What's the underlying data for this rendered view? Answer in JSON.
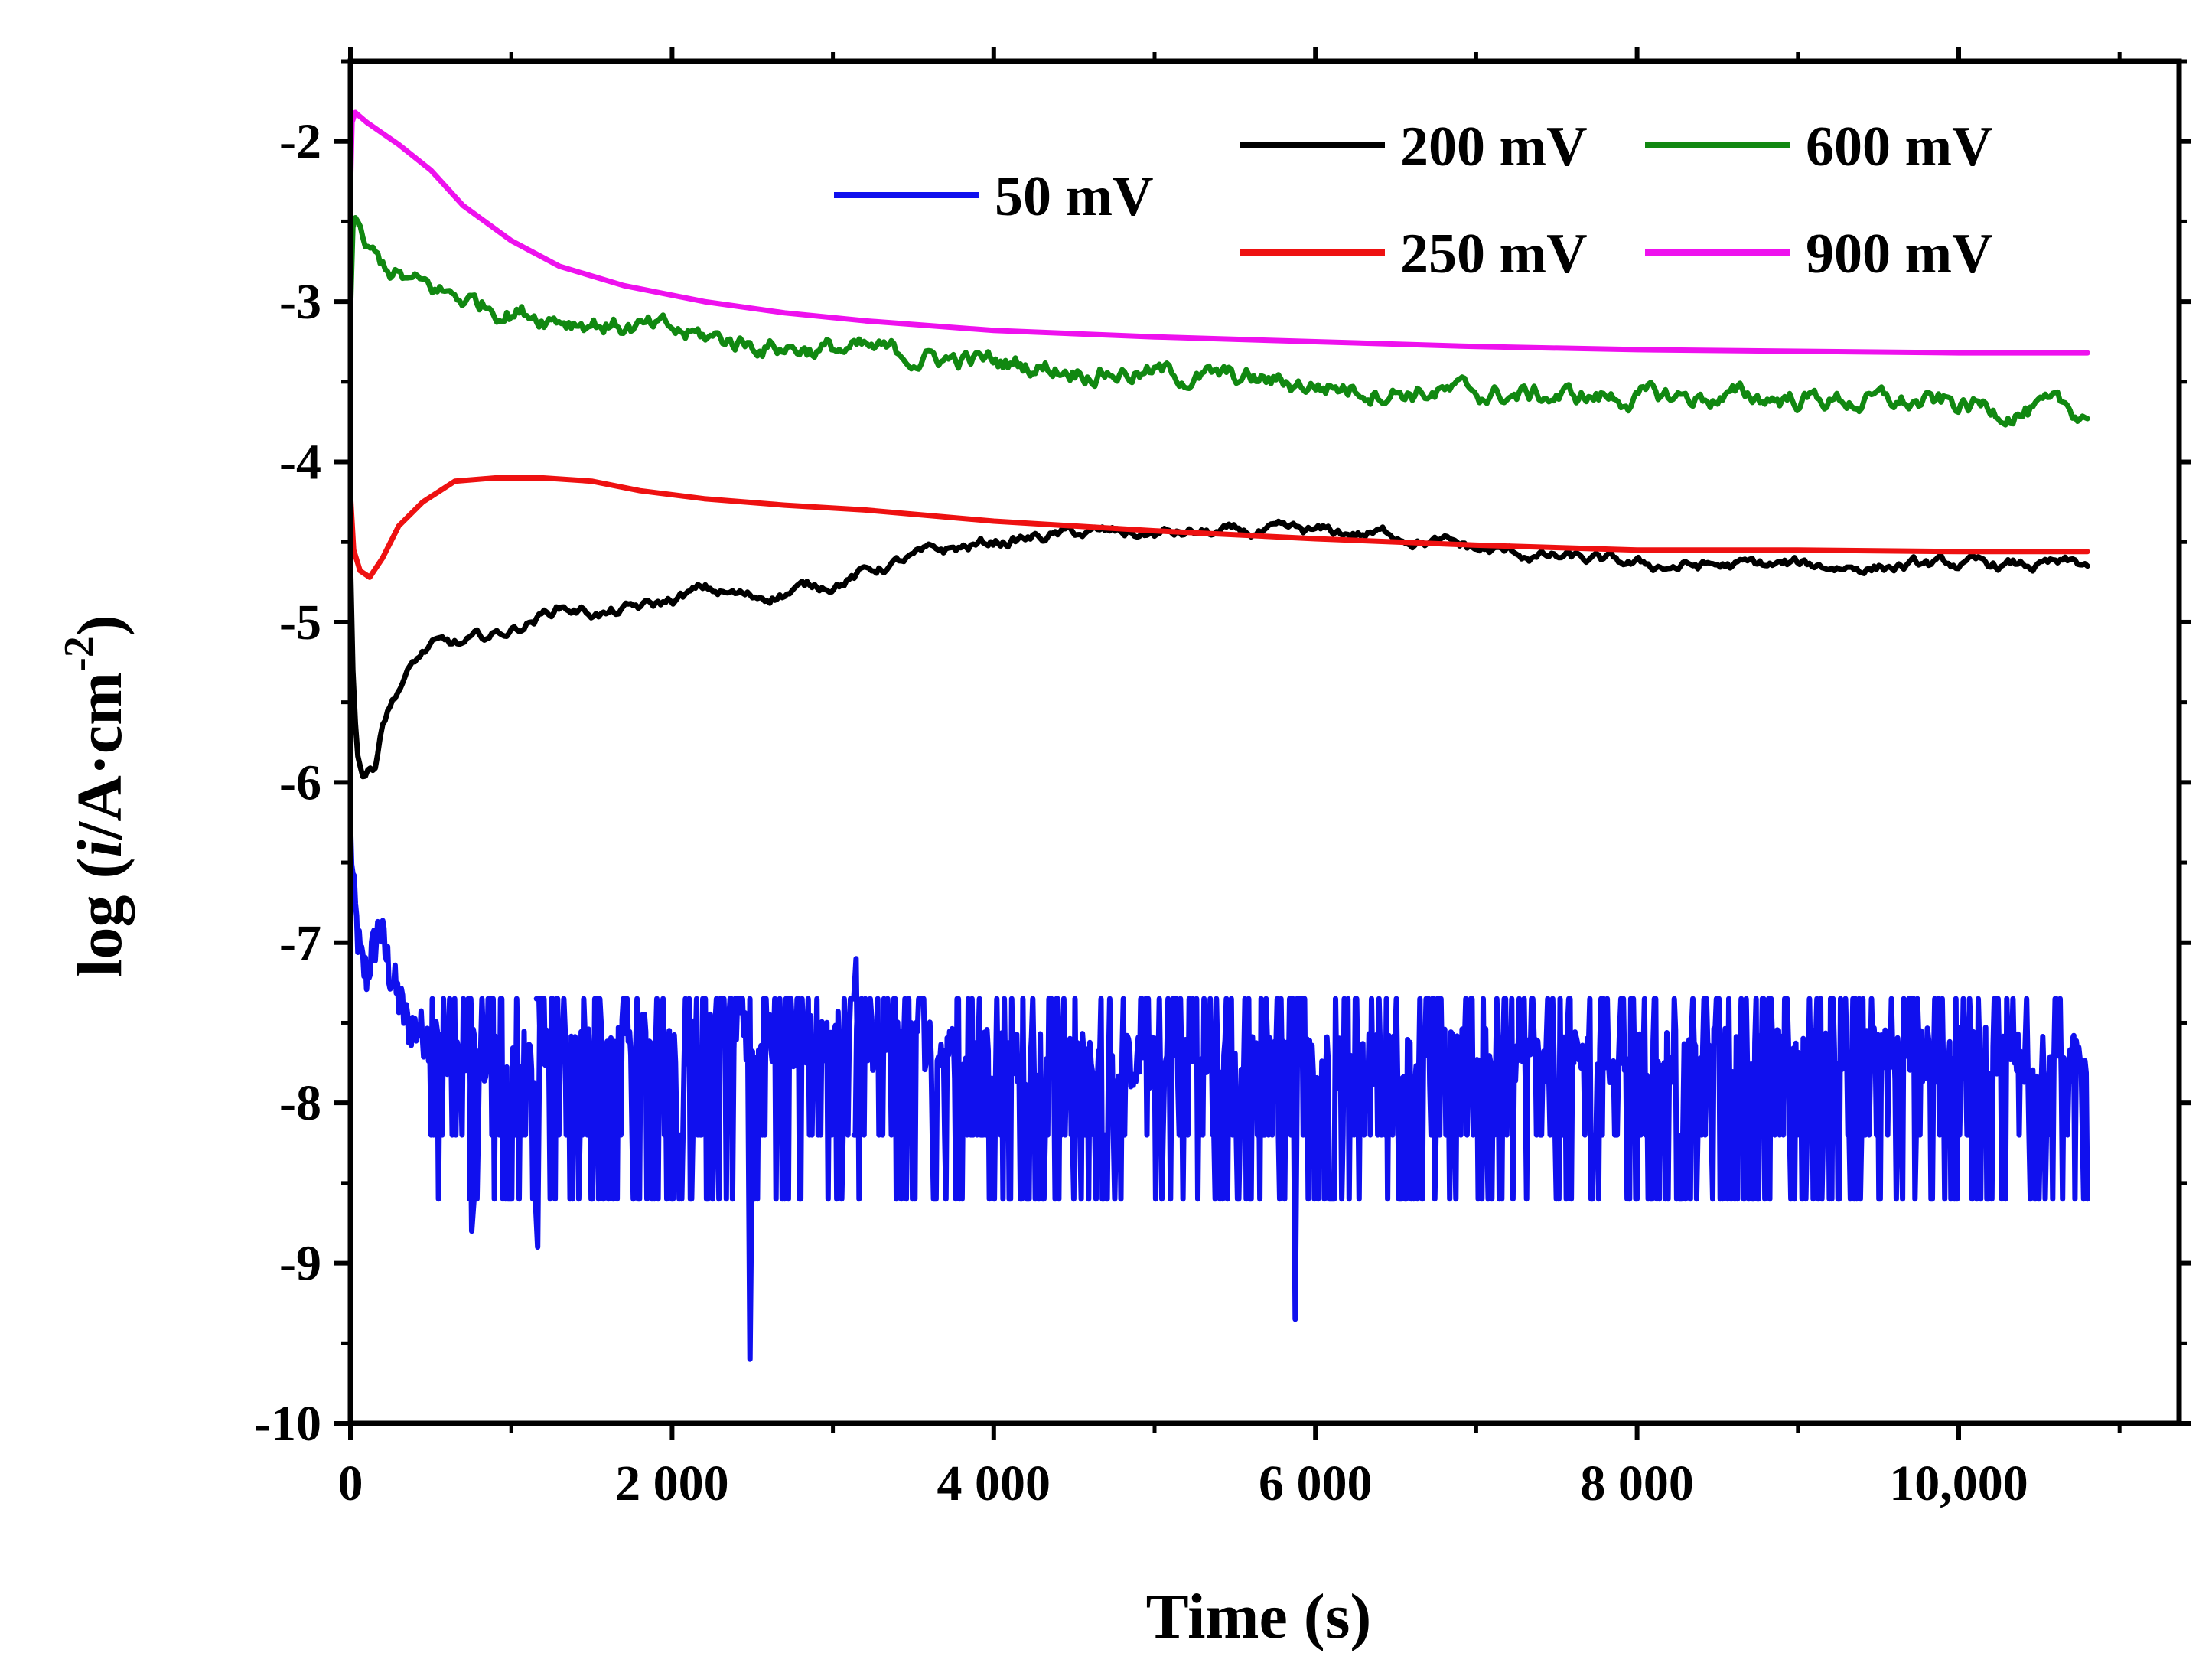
{
  "chart_data": {
    "type": "line",
    "xlabel": "Time (s)",
    "ylabel_parts": [
      "log (",
      "i",
      "/A·cm",
      "-2",
      ")"
    ],
    "xlim": [
      0,
      11000
    ],
    "ylim": [
      -10,
      -1.5
    ],
    "x_ticks": [
      {
        "value": 0,
        "label": "0"
      },
      {
        "value": 2000,
        "label": "2 000"
      },
      {
        "value": 4000,
        "label": "4 000"
      },
      {
        "value": 6000,
        "label": "6 000"
      },
      {
        "value": 8000,
        "label": "8 000"
      },
      {
        "value": 10000,
        "label": "10,000"
      }
    ],
    "y_ticks": [
      {
        "value": -2,
        "label": "-2"
      },
      {
        "value": -3,
        "label": "-3"
      },
      {
        "value": -4,
        "label": "-4"
      },
      {
        "value": -5,
        "label": "-5"
      },
      {
        "value": -6,
        "label": "-6"
      },
      {
        "value": -7,
        "label": "-7"
      },
      {
        "value": -8,
        "label": "-8"
      },
      {
        "value": -9,
        "label": "-9"
      },
      {
        "value": -10,
        "label": "-10"
      }
    ],
    "series": [
      {
        "name": "50 mV",
        "color": "#1010ee",
        "noise": "spiky",
        "x": [
          0,
          20,
          60,
          100,
          180,
          250,
          350,
          500,
          700,
          900,
          1200,
          1500,
          2000,
          2500,
          3000,
          4000,
          5000,
          6000,
          7000,
          8000,
          9000,
          10000,
          10800
        ],
        "y": [
          -6.3,
          -6.7,
          -7.1,
          -7.2,
          -6.9,
          -7.2,
          -7.5,
          -7.6,
          -7.7,
          -7.75,
          -7.7,
          -7.65,
          -7.6,
          -7.6,
          -7.6,
          -7.7,
          -7.75,
          -7.75,
          -7.7,
          -7.7,
          -7.7,
          -7.7,
          -7.7
        ]
      },
      {
        "name": "200 mV",
        "color": "#000000",
        "noise": "small",
        "x": [
          0,
          15,
          40,
          80,
          150,
          200,
          300,
          400,
          500,
          700,
          1000,
          1300,
          1600,
          1900,
          2200,
          2500,
          3000,
          3500,
          4000,
          4500,
          5000,
          5500,
          6000,
          6500,
          7000,
          7500,
          8000,
          9000,
          10000,
          10800
        ],
        "y": [
          -4.6,
          -5.3,
          -5.8,
          -5.95,
          -5.9,
          -5.6,
          -5.4,
          -5.25,
          -5.15,
          -5.15,
          -5.05,
          -4.9,
          -4.95,
          -4.9,
          -4.8,
          -4.85,
          -4.75,
          -4.6,
          -4.5,
          -4.45,
          -4.45,
          -4.45,
          -4.45,
          -4.45,
          -4.55,
          -4.6,
          -4.65,
          -4.65,
          -4.65,
          -4.65
        ]
      },
      {
        "name": "250 mV",
        "color": "#ee1111",
        "noise": "none",
        "x": [
          0,
          20,
          60,
          120,
          200,
          300,
          450,
          650,
          900,
          1200,
          1500,
          1800,
          2200,
          2700,
          3200,
          4000,
          5000,
          6000,
          7000,
          8000,
          9000,
          10000,
          10800
        ],
        "y": [
          -4.2,
          -4.55,
          -4.68,
          -4.72,
          -4.6,
          -4.4,
          -4.25,
          -4.12,
          -4.1,
          -4.1,
          -4.12,
          -4.18,
          -4.23,
          -4.27,
          -4.3,
          -4.37,
          -4.43,
          -4.48,
          -4.52,
          -4.55,
          -4.55,
          -4.56,
          -4.56
        ]
      },
      {
        "name": "600 mV",
        "color": "#118811",
        "noise": "medium",
        "x": [
          0,
          10,
          30,
          60,
          100,
          200,
          400,
          700,
          1000,
          1500,
          2000,
          2500,
          3000,
          4000,
          5000,
          6000,
          7000,
          8000,
          9000,
          10000,
          10800
        ],
        "y": [
          -3.1,
          -2.65,
          -2.5,
          -2.6,
          -2.7,
          -2.78,
          -2.9,
          -2.98,
          -3.05,
          -3.12,
          -3.2,
          -3.26,
          -3.3,
          -3.38,
          -3.45,
          -3.52,
          -3.58,
          -3.6,
          -3.6,
          -3.65,
          -3.7
        ]
      },
      {
        "name": "900 mV",
        "color": "#ee11ee",
        "noise": "none",
        "x": [
          0,
          10,
          30,
          100,
          300,
          500,
          700,
          1000,
          1300,
          1700,
          2200,
          2700,
          3200,
          4000,
          5000,
          6000,
          7000,
          8000,
          9000,
          10000,
          10800
        ],
        "y": [
          -2.3,
          -1.88,
          -1.82,
          -1.88,
          -2.02,
          -2.18,
          -2.4,
          -2.62,
          -2.78,
          -2.9,
          -3.0,
          -3.07,
          -3.12,
          -3.18,
          -3.22,
          -3.25,
          -3.28,
          -3.3,
          -3.31,
          -3.32,
          -3.32
        ]
      }
    ],
    "legend": {
      "placement": "top",
      "entries": [
        "50 mV",
        "200 mV",
        "250 mV",
        "600 mV",
        "900 mV"
      ]
    }
  }
}
